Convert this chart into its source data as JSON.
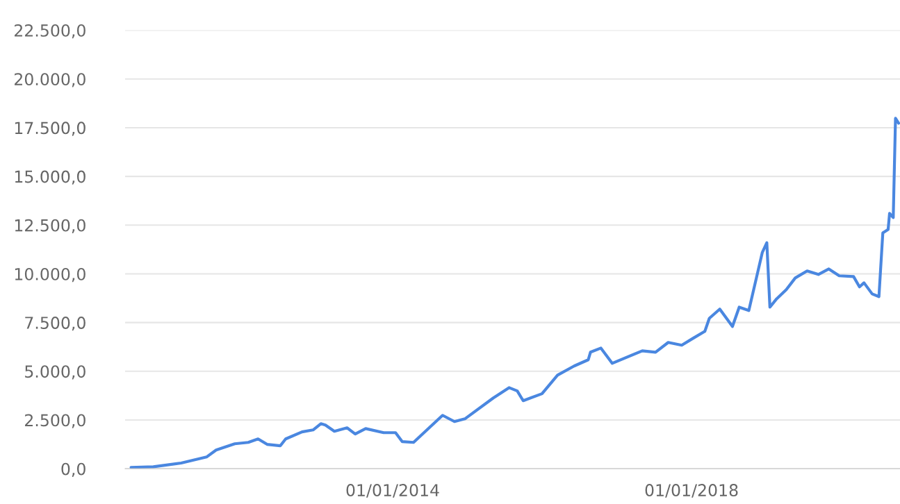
{
  "chart_data": {
    "type": "line",
    "x": [
      "2010-07-02",
      "2010-10-19",
      "2011-03-04",
      "2011-07-06",
      "2011-08-22",
      "2011-11-21",
      "2012-01-26",
      "2012-03-14",
      "2012-04-27",
      "2012-07-01",
      "2012-07-27",
      "2012-10-15",
      "2012-12-08",
      "2013-01-15",
      "2013-02-06",
      "2013-03-22",
      "2013-05-23",
      "2013-07-02",
      "2013-08-22",
      "2013-11-18",
      "2014-01-15",
      "2014-02-17",
      "2014-04-13",
      "2014-09-02",
      "2014-10-30",
      "2014-12-20",
      "2015-05-08",
      "2015-07-24",
      "2015-09-02",
      "2015-10-01",
      "2016-01-01",
      "2016-03-17",
      "2016-06-06",
      "2016-08-14",
      "2016-08-25",
      "2016-10-15",
      "2016-12-09",
      "2017-05-05",
      "2017-07-09",
      "2017-09-09",
      "2017-11-14",
      "2018-01-08",
      "2018-03-07",
      "2018-03-29",
      "2018-05-19",
      "2018-07-20",
      "2018-08-22",
      "2018-10-08",
      "2018-11-06",
      "2018-12-13",
      "2019-01-04",
      "2019-01-19",
      "2019-02-21",
      "2019-04-09",
      "2019-05-23",
      "2019-07-20",
      "2019-09-13",
      "2019-11-03",
      "2019-12-24",
      "2020-03-03",
      "2020-04-01",
      "2020-04-23",
      "2020-06-02",
      "2020-07-05",
      "2020-07-24",
      "2020-08-19",
      "2020-08-26",
      "2020-09-13",
      "2020-09-24",
      "2020-10-09"
    ],
    "series": [
      {
        "color": "#4a87e0",
        "values": [
          70,
          100,
          290,
          600,
          960,
          1280,
          1350,
          1530,
          1250,
          1180,
          1530,
          1890,
          1990,
          2310,
          2240,
          1920,
          2100,
          1780,
          2060,
          1850,
          1850,
          1390,
          1350,
          2740,
          2420,
          2560,
          3630,
          4160,
          3990,
          3490,
          3850,
          4800,
          5270,
          5590,
          5980,
          6190,
          5410,
          6050,
          5980,
          6480,
          6340,
          6690,
          7050,
          7720,
          8190,
          7300,
          8290,
          8120,
          9430,
          11100,
          11600,
          8290,
          8720,
          9190,
          9790,
          10150,
          9970,
          10250,
          9900,
          9860,
          9330,
          9540,
          8970,
          8830,
          12100,
          12280,
          13100,
          12890,
          17980,
          17730
        ]
      }
    ],
    "xlim": [
      "2010-06-03",
      "2020-10-16"
    ],
    "xticks": [
      {
        "value": "2014-01-01",
        "label": "01/01/2014"
      },
      {
        "value": "2018-01-01",
        "label": "01/01/2018"
      }
    ],
    "ylim": [
      0,
      22500
    ],
    "yticks": [
      {
        "value": 0,
        "label": "0,0"
      },
      {
        "value": 2500,
        "label": "2.500,0"
      },
      {
        "value": 5000,
        "label": "5.000,0"
      },
      {
        "value": 7500,
        "label": "7.500,0"
      },
      {
        "value": 10000,
        "label": "10.000,0"
      },
      {
        "value": 12500,
        "label": "12.500,0"
      },
      {
        "value": 15000,
        "label": "15.000,0"
      },
      {
        "value": 17500,
        "label": "17.500,0"
      },
      {
        "value": 20000,
        "label": "20.000,0"
      },
      {
        "value": 22500,
        "label": "22.500,0"
      }
    ],
    "grid": "y",
    "legend": false
  }
}
